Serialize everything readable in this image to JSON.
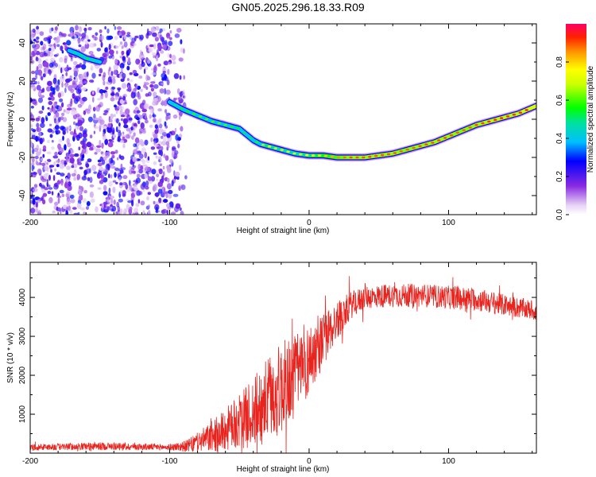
{
  "title": "GN05.2025.296.18.33.R09",
  "chart_data": [
    {
      "type": "heatmap",
      "xlabel": "Height of straight line (km)",
      "ylabel": "Frequency (Hz)",
      "xlim": [
        -200,
        163
      ],
      "ylim": [
        -50,
        50
      ],
      "x_ticks": [
        -200,
        -100,
        0,
        100
      ],
      "y_ticks": [
        -40,
        -20,
        0,
        20,
        40
      ],
      "colorbar": {
        "label": "Normalized spectral amplitude",
        "range": [
          0.0,
          1.0
        ],
        "ticks": [
          "0.0",
          "0.2",
          "0.4",
          "0.6",
          "0.8"
        ],
        "tick_values": [
          0.0,
          0.2,
          0.4,
          0.6,
          0.8
        ]
      },
      "noise_region": {
        "x_range": [
          -200,
          -88
        ],
        "y_range": [
          -50,
          48
        ]
      },
      "ridge": {
        "x": [
          -172,
          -165,
          -160,
          -155,
          -150,
          -100,
          -90,
          -80,
          -70,
          -60,
          -50,
          -45,
          -40,
          -35,
          -30,
          -20,
          -10,
          0,
          10,
          20,
          30,
          40,
          50,
          60,
          70,
          80,
          90,
          100,
          110,
          120,
          130,
          140,
          150,
          163
        ],
        "frequency": [
          36,
          34,
          32,
          31,
          30,
          9,
          5,
          2,
          -1,
          -3,
          -5,
          -8,
          -11,
          -13,
          -14,
          -16,
          -18,
          -19,
          -19,
          -20,
          -20,
          -20,
          -19,
          -18,
          -16,
          -14,
          -12,
          -9,
          -6,
          -3,
          -1,
          1,
          3,
          7
        ],
        "amplitude": [
          0.45,
          0.5,
          0.55,
          0.5,
          0.45,
          0.45,
          0.55,
          0.6,
          0.6,
          0.6,
          0.55,
          0.5,
          0.55,
          0.6,
          0.75,
          0.7,
          0.7,
          0.75,
          0.8,
          0.85,
          0.9,
          0.9,
          0.9,
          0.9,
          0.88,
          0.9,
          0.9,
          0.9,
          0.88,
          0.9,
          0.92,
          0.92,
          0.92,
          0.95
        ]
      }
    },
    {
      "type": "line",
      "xlabel": "Height of straight line (km)",
      "ylabel": "SNR (10 * v/v)",
      "xlim": [
        -200,
        163
      ],
      "ylim": [
        0,
        4900
      ],
      "x_ticks": [
        -200,
        -100,
        0,
        100
      ],
      "y_ticks": [
        1000,
        2000,
        3000,
        4000
      ],
      "series": [
        {
          "name": "SNR",
          "color": "#e8241f",
          "trend_x": [
            -200,
            -150,
            -100,
            -88,
            -80,
            -70,
            -60,
            -50,
            -40,
            -30,
            -20,
            -10,
            0,
            10,
            20,
            30,
            40,
            60,
            80,
            100,
            120,
            140,
            163
          ],
          "trend_mean": [
            150,
            180,
            150,
            180,
            280,
            420,
            600,
            800,
            1050,
            1350,
            1650,
            2000,
            2400,
            2900,
            3400,
            3800,
            4000,
            4050,
            4050,
            4000,
            3950,
            3800,
            3650
          ],
          "trend_spread": [
            80,
            100,
            80,
            150,
            250,
            400,
            550,
            700,
            900,
            1100,
            1200,
            1100,
            900,
            700,
            500,
            350,
            300,
            300,
            300,
            300,
            300,
            280,
            250
          ]
        }
      ]
    }
  ]
}
